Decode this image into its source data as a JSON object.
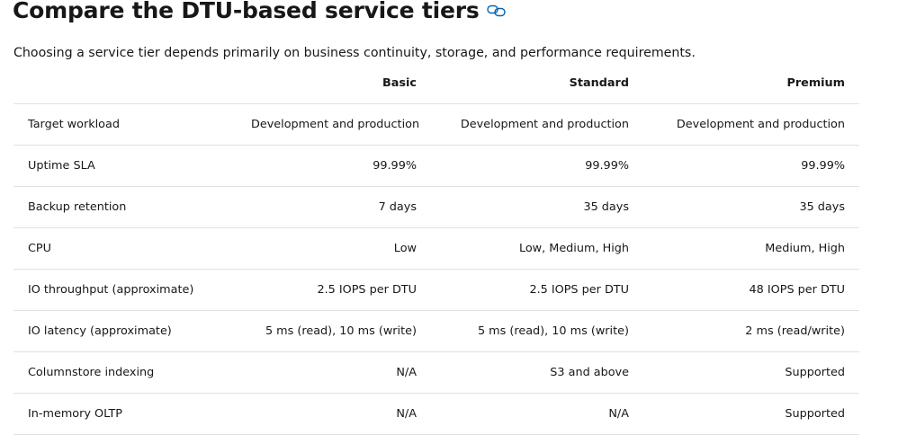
{
  "heading": {
    "title": "Compare the DTU-based service tiers",
    "link_icon": "link-icon",
    "link_color": "#0065b3"
  },
  "intro": "Choosing a service tier depends primarily on business continuity, storage, and performance requirements.",
  "table": {
    "columns": [
      "",
      "Basic",
      "Standard",
      "Premium"
    ],
    "rows": [
      {
        "label": "Target workload",
        "values": [
          "Development and production",
          "Development and production",
          "Development and production"
        ]
      },
      {
        "label": "Uptime SLA",
        "values": [
          "99.99%",
          "99.99%",
          "99.99%"
        ]
      },
      {
        "label": "Backup retention",
        "values": [
          "7 days",
          "35 days",
          "35 days"
        ]
      },
      {
        "label": "CPU",
        "values": [
          "Low",
          "Low, Medium, High",
          "Medium, High"
        ]
      },
      {
        "label": "IO throughput (approximate)",
        "values": [
          "2.5 IOPS per DTU",
          "2.5 IOPS per DTU",
          "48 IOPS per DTU"
        ]
      },
      {
        "label": "IO latency (approximate)",
        "values": [
          "5 ms (read), 10 ms (write)",
          "5 ms (read), 10 ms (write)",
          "2 ms (read/write)"
        ]
      },
      {
        "label": "Columnstore indexing",
        "values": [
          "N/A",
          "S3 and above",
          "Supported"
        ]
      },
      {
        "label": "In-memory OLTP",
        "values": [
          "N/A",
          "N/A",
          "Supported"
        ]
      }
    ]
  }
}
